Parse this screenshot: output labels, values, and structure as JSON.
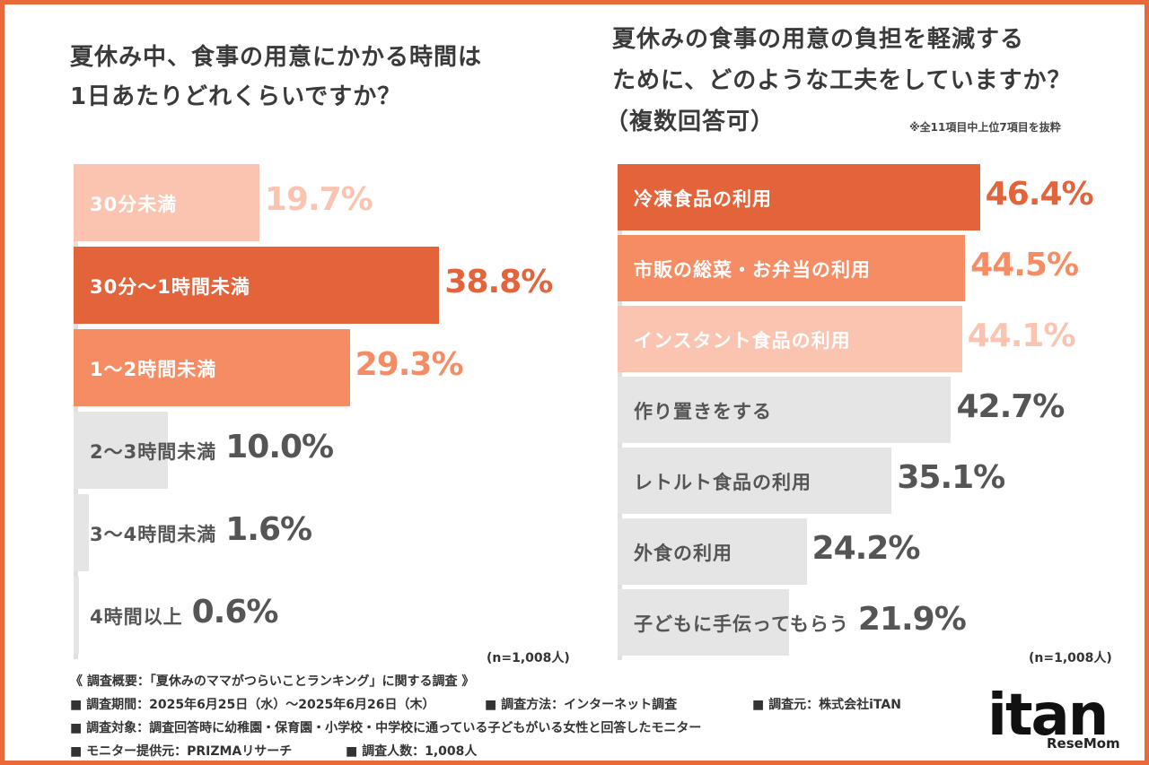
{
  "left_title": {
    "line1": "夏休み中、食事の用意にかかる時間は",
    "line2": "1日あたりどれくらいですか？"
  },
  "right_title": {
    "line1": "夏休みの食事の用意の負担を軽減する",
    "line2": "ために、どのような工夫をしていますか？",
    "line3": "（複数回答可）",
    "note": "※全11項目中上位7項目を抜粋"
  },
  "colors": {
    "dark": "#e3633a",
    "medium": "#f58c64",
    "light": "#fbc4b0",
    "gray_bar": "#e5e5e5",
    "gray_text": "#555555"
  },
  "chart_data": [
    {
      "type": "bar",
      "orientation": "horizontal",
      "title": "夏休み中、食事の用意にかかる時間は1日あたりどれくらいですか？",
      "categories": [
        "30分未満",
        "30分〜1時間未満",
        "1〜2時間未満",
        "2〜3時間未満",
        "3〜4時間未満",
        "4時間以上"
      ],
      "value_labels": [
        "19.7%",
        "38.8%",
        "29.3%",
        "10.0%",
        "1.6%",
        "0.6%"
      ],
      "values": [
        19.7,
        38.8,
        29.3,
        10.0,
        1.6,
        0.6
      ],
      "bar_styles": [
        "light",
        "dark",
        "medium",
        "gray",
        "gray",
        "gray"
      ],
      "sample_note": "(n=1,008人)"
    },
    {
      "type": "bar",
      "orientation": "horizontal",
      "title": "夏休みの食事の用意の負担を軽減するために、どのような工夫をしていますか？（複数回答可）",
      "categories": [
        "冷凍食品の利用",
        "市販の総菜・お弁当の利用",
        "インスタント食品の利用",
        "作り置きをする",
        "レトルト食品の利用",
        "外食の利用",
        "子どもに手伝ってもらう"
      ],
      "value_labels": [
        "46.4%",
        "44.5%",
        "44.1%",
        "42.7%",
        "35.1%",
        "24.2%",
        "21.9%"
      ],
      "values": [
        46.4,
        44.5,
        44.1,
        42.7,
        35.1,
        24.2,
        21.9
      ],
      "bar_styles": [
        "dark",
        "medium",
        "light",
        "gray",
        "gray",
        "gray",
        "gray"
      ],
      "sample_note": "(n=1,008人)"
    }
  ],
  "footer": {
    "heading": "《 調査概要：「夏休みのママがつらいことランキング」に関する調査 》",
    "period": "■ 調査期間：2025年6月25日（水）〜2025年6月26日（木）",
    "method": "■ 調査方法：インターネット調査",
    "source": "■ 調査元：株式会社iTAN",
    "target": "■ 調査対象：調査回答時に幼稚園・保育園・小学校・中学校に通っている子どもがいる女性と回答したモニター",
    "provider": "■ モニター提供元：PRIZMAリサーチ",
    "count": "■ 調査人数：1,008人"
  },
  "logo": {
    "itan": "itan",
    "resemom": "ReseMom"
  }
}
